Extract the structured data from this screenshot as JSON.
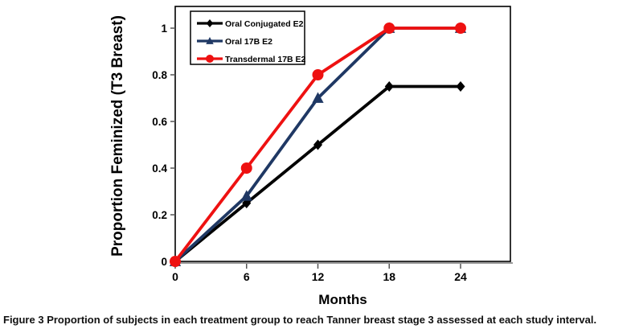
{
  "caption": {
    "label": "Figure 3",
    "text": "Proportion of subjects in each treatment group to reach Tanner breast stage 3 assessed at each study interval."
  },
  "chart_data": {
    "type": "line",
    "title": "",
    "xlabel": "Months",
    "ylabel": "Proportion Feminized (T3 Breast)",
    "x": [
      0,
      6,
      12,
      18,
      24
    ],
    "xticks": [
      0,
      6,
      12,
      18,
      24
    ],
    "xtick_labels": [
      "0",
      "6",
      "12",
      "18",
      "24"
    ],
    "yticks": [
      0,
      0.2,
      0.4,
      0.6,
      0.8,
      1
    ],
    "ytick_labels": [
      "0",
      "0.2",
      "0.4",
      "0.6",
      "0.8",
      "1"
    ],
    "xlim": [
      0,
      28.2
    ],
    "ylim": [
      0,
      1.09
    ],
    "grid": false,
    "legend_position": "top-left-inside",
    "series": [
      {
        "name": "Oral Conjugated E2",
        "color": "#000000",
        "marker": "diamond",
        "values": [
          0,
          0.25,
          0.5,
          0.75,
          0.75
        ]
      },
      {
        "name": "Oral 17B E2",
        "color": "#1f3864",
        "marker": "triangle",
        "values": [
          0,
          0.28,
          0.7,
          1,
          1
        ]
      },
      {
        "name": "Transdermal 17B E2",
        "color": "#ee1111",
        "marker": "circle",
        "values": [
          0,
          0.4,
          0.8,
          1,
          1
        ]
      }
    ],
    "axis_color": "#000000",
    "baseline_color": "#9b9b9b"
  }
}
